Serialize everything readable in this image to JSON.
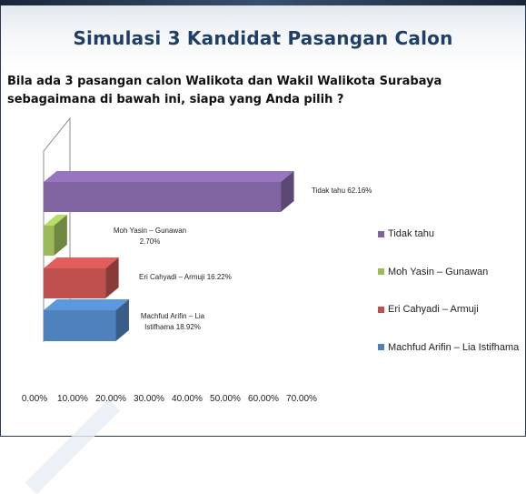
{
  "slide": {
    "title": "Simulasi 3 Kandidat Pasangan Calon",
    "question": "Bila ada 3 pasangan calon Walikota dan Wakil Walikota Surabaya sebagaimana di bawah ini, siapa yang Anda pilih ?"
  },
  "chart_data": {
    "type": "bar",
    "orientation": "horizontal",
    "style": "3d",
    "categories": [
      "Tidak tahu",
      "Moh Yasin – Gunawan",
      "Eri Cahyadi – Armuji",
      "Machfud Arifin – Lia Istifhama"
    ],
    "values": [
      62.16,
      2.7,
      16.22,
      18.92
    ],
    "data_labels": [
      "Tidak tahu 62.16%",
      "Moh Yasin – Gunawan 2.70%",
      "Eri Cahyadi – Armuji 16.22%",
      "Machfud Arifin – Lia Istifhama 18.92%"
    ],
    "colors": [
      "#8064a2",
      "#9bbb59",
      "#c0504d",
      "#4f81bd"
    ],
    "xlim": [
      0,
      70
    ],
    "xticks": [
      "0.00%",
      "10.00%",
      "20.00%",
      "30.00%",
      "40.00%",
      "50.00%",
      "60.00%",
      "70.00%"
    ],
    "legend": {
      "position": "right",
      "entries": [
        "Tidak tahu",
        "Moh Yasin – Gunawan",
        "Eri Cahyadi – Armuji",
        "Machfud Arifin – Lia Istifhama"
      ]
    },
    "grid": false
  }
}
